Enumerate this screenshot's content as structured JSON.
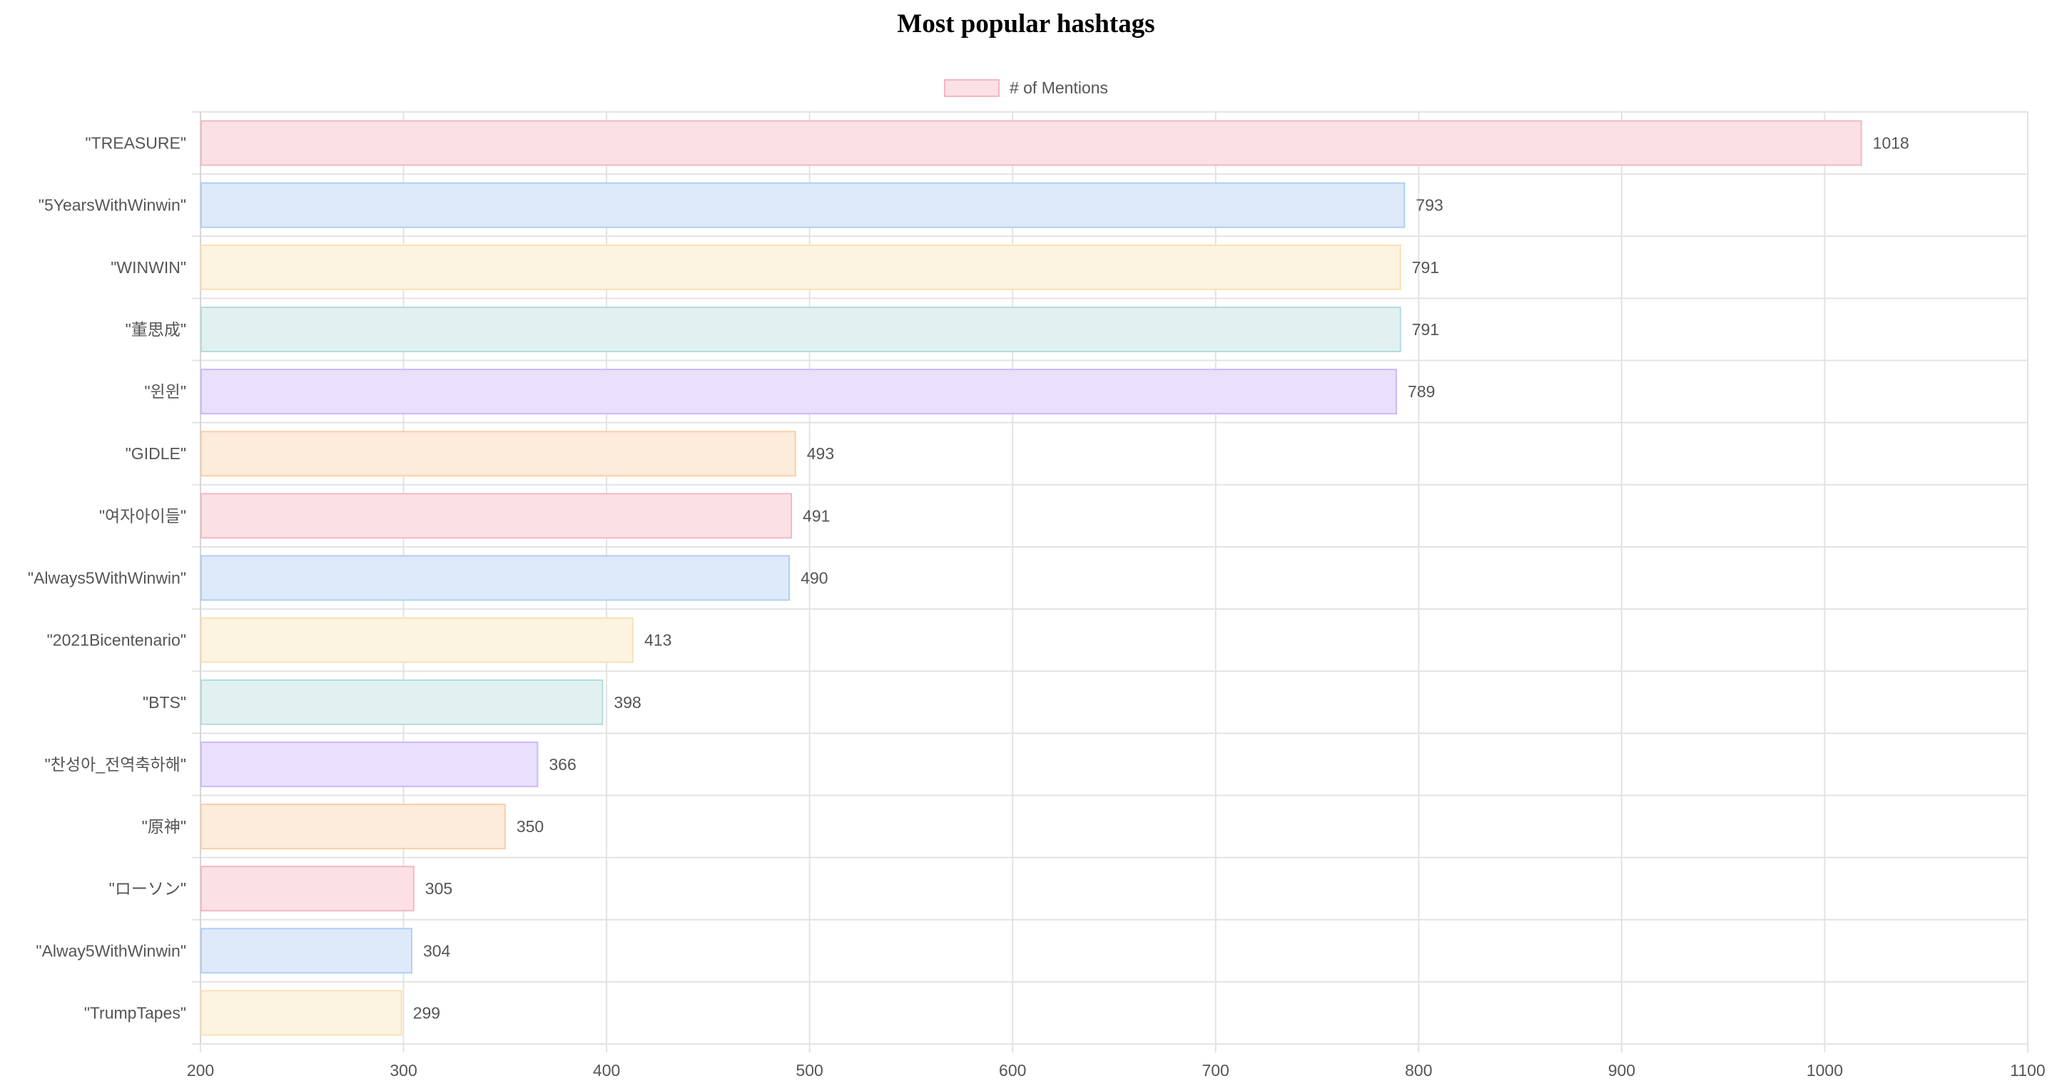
{
  "chart_data": {
    "type": "bar",
    "orientation": "horizontal",
    "title": "Most popular hashtags",
    "legend": {
      "position": "top-center",
      "entries": [
        "# of Mentions"
      ]
    },
    "categories": [
      "\"TREASURE\"",
      "\"5YearsWithWinwin\"",
      "\"WINWIN\"",
      "\"董思成\"",
      "\"윈윈\"",
      "\"GIDLE\"",
      "\"여자아이들\"",
      "\"Always5WithWinwin\"",
      "\"2021Bicentenario\"",
      "\"BTS\"",
      "\"찬성아_전역축하해\"",
      "\"原神\"",
      "\"ローソン\"",
      "\"Alway5WithWinwin\"",
      "\"TrumpTapes\""
    ],
    "series": [
      {
        "name": "# of Mentions",
        "values": [
          1018,
          793,
          791,
          791,
          789,
          493,
          491,
          490,
          413,
          398,
          366,
          350,
          305,
          304,
          299
        ]
      }
    ],
    "xlim": [
      200,
      1100
    ],
    "xticks": [
      200,
      300,
      400,
      500,
      600,
      700,
      800,
      900,
      1000,
      1100
    ],
    "grid": true,
    "data_labels": true,
    "colors": {
      "fills": [
        "#fbe1e6",
        "#deeafa",
        "#fdf3e1",
        "#e1f1f1",
        "#e9e0fe",
        "#fdebdc"
      ],
      "borders": [
        "#f4b7c2",
        "#acd0f5",
        "#fbe0b0",
        "#b2dcdc",
        "#cbb8fd",
        "#fbcfa6"
      ],
      "grid": "#e3e3e3",
      "text": "#555555"
    }
  }
}
